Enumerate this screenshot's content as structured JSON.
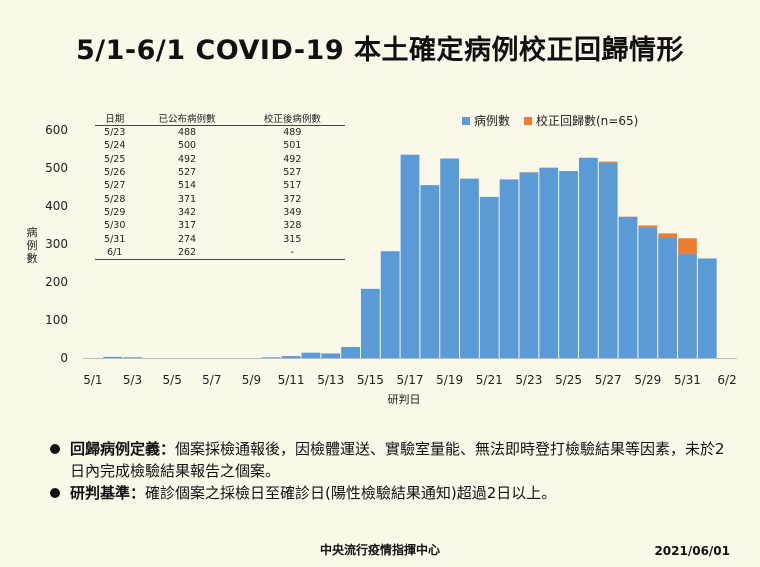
{
  "page": {
    "title": "5/1-6/1 COVID-19 本土確定病例校正回歸情形",
    "bullets": [
      {
        "label": "回歸病例定義：",
        "text": "個案採檢通報後，因檢體運送、實驗室量能、無法即時登打檢驗結果等因素，未於2日內完成檢驗結果報告之個案。"
      },
      {
        "label": "研判基準：",
        "text": "確診個案之採檢日至確診日(陽性檢驗結果通知)超過2日以上。"
      }
    ],
    "footer_center": "中央流行疫情指揮中心",
    "footer_date": "2021/06/01"
  },
  "colors": {
    "cases": "#5b9bd5",
    "corrected": "#ed7d31"
  },
  "table": {
    "headers": [
      "日期",
      "已公布病例數",
      "校正後病例數"
    ],
    "rows": [
      [
        "5/23",
        "488",
        "489"
      ],
      [
        "5/24",
        "500",
        "501"
      ],
      [
        "5/25",
        "492",
        "492"
      ],
      [
        "5/26",
        "527",
        "527"
      ],
      [
        "5/27",
        "514",
        "517"
      ],
      [
        "5/28",
        "371",
        "372"
      ],
      [
        "5/29",
        "342",
        "349"
      ],
      [
        "5/30",
        "317",
        "328"
      ],
      [
        "5/31",
        "274",
        "315"
      ],
      [
        "6/1",
        "262",
        "-"
      ]
    ]
  },
  "chart_data": {
    "type": "bar",
    "stacked": true,
    "ylabel": "病例數",
    "xlabel": "研判日",
    "ylim": [
      0,
      600
    ],
    "yticks": [
      0,
      100,
      200,
      300,
      400,
      500,
      600
    ],
    "x_tick_labels": [
      "5/1",
      "5/3",
      "5/5",
      "5/7",
      "5/9",
      "5/11",
      "5/13",
      "5/15",
      "5/17",
      "5/19",
      "5/21",
      "5/23",
      "5/25",
      "5/27",
      "5/29",
      "5/31",
      "6/2"
    ],
    "legend_position": "top-right",
    "categories": [
      "5/1",
      "5/2",
      "5/3",
      "5/4",
      "5/5",
      "5/6",
      "5/7",
      "5/8",
      "5/9",
      "5/10",
      "5/11",
      "5/12",
      "5/13",
      "5/14",
      "5/15",
      "5/16",
      "5/17",
      "5/18",
      "5/19",
      "5/20",
      "5/21",
      "5/22",
      "5/23",
      "5/24",
      "5/25",
      "5/26",
      "5/27",
      "5/28",
      "5/29",
      "5/30",
      "5/31",
      "6/1"
    ],
    "series": [
      {
        "name": "病例數",
        "values": [
          0,
          3,
          2,
          0,
          0,
          0,
          0,
          0,
          0,
          2,
          5,
          14,
          12,
          29,
          182,
          281,
          535,
          455,
          525,
          472,
          424,
          470,
          488,
          500,
          492,
          527,
          514,
          371,
          342,
          317,
          274,
          262
        ]
      },
      {
        "name": "校正回歸數(n=65)",
        "values": [
          0,
          0,
          0,
          0,
          0,
          0,
          0,
          0,
          0,
          0,
          0,
          0,
          0,
          0,
          0,
          0,
          0,
          0,
          0,
          0,
          0,
          0,
          1,
          1,
          0,
          0,
          3,
          1,
          7,
          11,
          41,
          0
        ]
      }
    ]
  }
}
